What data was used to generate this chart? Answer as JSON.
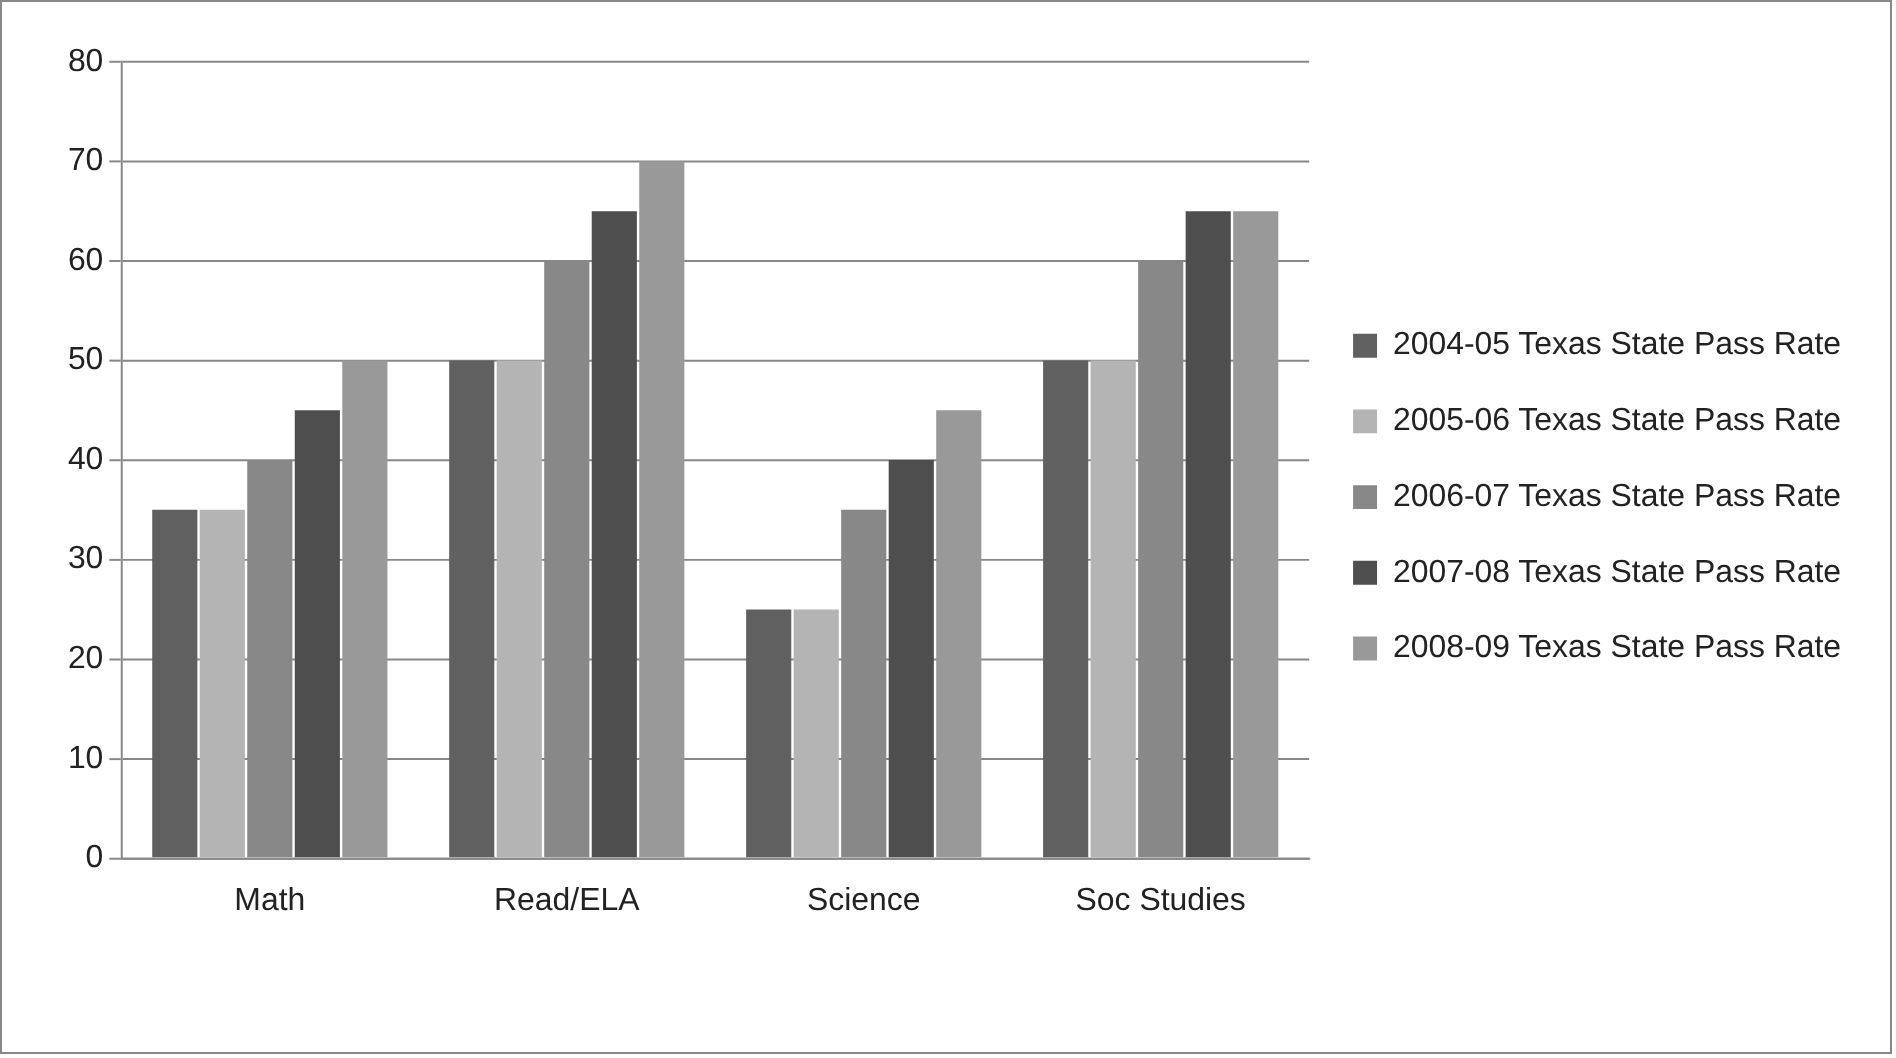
{
  "chart_data": {
    "type": "bar",
    "categories": [
      "Math",
      "Read/ELA",
      "Science",
      "Soc Studies"
    ],
    "series": [
      {
        "name": "2004-05 Texas State Pass Rate",
        "color": "#606060",
        "values": [
          35,
          50,
          25,
          50
        ]
      },
      {
        "name": "2005-06 Texas State Pass Rate",
        "color": "#b4b4b4",
        "values": [
          35,
          50,
          25,
          50
        ]
      },
      {
        "name": "2006-07 Texas State Pass Rate",
        "color": "#888888",
        "values": [
          40,
          60,
          35,
          60
        ]
      },
      {
        "name": "2007-08 Texas State Pass Rate",
        "color": "#4e4e4e",
        "values": [
          45,
          65,
          40,
          65
        ]
      },
      {
        "name": "2008-09 Texas State Pass Rate",
        "color": "#999999",
        "values": [
          50,
          70,
          45,
          65
        ]
      }
    ],
    "ylim": [
      0,
      80
    ],
    "yticks": [
      0,
      10,
      20,
      30,
      40,
      50,
      60,
      70,
      80
    ],
    "grid": "y",
    "legend": "right"
  }
}
